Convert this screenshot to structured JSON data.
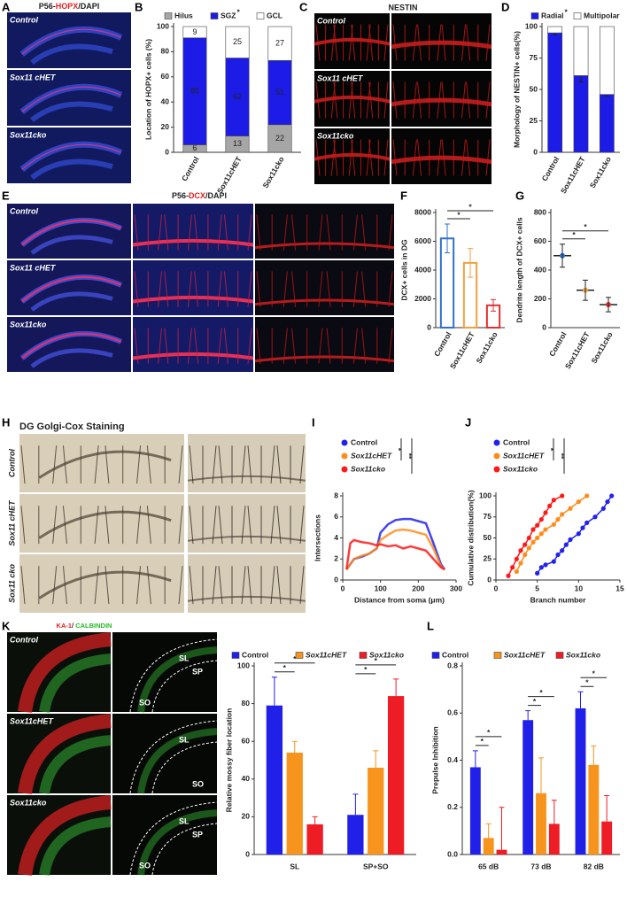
{
  "panel_letters": [
    "A",
    "B",
    "C",
    "D",
    "E",
    "F",
    "G",
    "H",
    "I",
    "J",
    "K",
    "L"
  ],
  "panels": {
    "A": {
      "title": [
        "P56-",
        "HOPX",
        "/DAPI"
      ],
      "rows": [
        "Control",
        "Sox11 cHET",
        "Sox11cko"
      ]
    },
    "C": {
      "title": "NESTIN",
      "rows": [
        "Control",
        "Sox11 cHET",
        "Sox11cko"
      ]
    },
    "E": {
      "title": [
        "P56-",
        "DCX",
        "/DAPI"
      ],
      "rows": [
        "Control",
        "Sox11 cHET",
        "Sox11cko"
      ]
    },
    "H": {
      "title": "DG Golgi-Cox Staining",
      "rows": [
        "Control",
        "Sox11 cHET",
        "Sox11 cko"
      ]
    },
    "K": {
      "title": [
        "KA-1",
        "/ ",
        "CALBINDIN"
      ],
      "rows": [
        "Control",
        "Sox11cHET",
        "Sox11cko"
      ],
      "regions": [
        [
          "SL",
          "SP",
          "SO"
        ],
        [
          "SL",
          "SO"
        ],
        [
          "SL",
          "SP",
          "SO"
        ]
      ]
    }
  },
  "chart_data": [
    {
      "type": "bar",
      "stacked": true,
      "show_values": true,
      "ylabel": "Location of HOPX+ cells (%)",
      "categories": [
        "Control",
        "Sox11cHET",
        "Sox11cko"
      ],
      "series": [
        {
          "name": "Hilus",
          "color": "#a6a6a6",
          "values": [
            6,
            13,
            22
          ]
        },
        {
          "name": "SGZ",
          "color": "#1c1ce6",
          "mark": "*",
          "values": [
            85,
            62,
            51
          ]
        },
        {
          "name": "GCL",
          "color": "#ffffff",
          "values": [
            9,
            25,
            27
          ]
        }
      ],
      "ylim": [
        0,
        100
      ],
      "yticks": [
        0,
        20,
        40,
        60,
        80,
        100
      ]
    },
    {
      "type": "bar",
      "stacked": true,
      "ylabel": "Morphology of  NESTIN+ cells(%)",
      "categories": [
        "Control",
        "Sox11cHET",
        "Sox11cko"
      ],
      "series": [
        {
          "name": "Radial",
          "color": "#1c1ce6",
          "mark": "*",
          "values": [
            95,
            61,
            46
          ],
          "errors": [
            1.5,
            5,
            1.5
          ]
        },
        {
          "name": "Multipolar",
          "color": "#ffffff",
          "values": [
            5,
            39,
            54
          ]
        }
      ],
      "ylim": [
        0,
        100
      ],
      "yticks": [
        0,
        25,
        50,
        75,
        100
      ]
    },
    {
      "type": "bar",
      "ylabel": "DCX+ cells in DG",
      "categories": [
        "Control",
        "Sox11cHET",
        "Sox11cko"
      ],
      "values": [
        6200,
        4500,
        1550
      ],
      "errors": [
        1000,
        1000,
        400
      ],
      "colors": [
        "#2e6fcf",
        "#f0a040",
        "#e03030"
      ],
      "ylim": [
        0,
        8000
      ],
      "yticks": [
        0,
        2000,
        4000,
        6000,
        8000
      ],
      "significance": [
        {
          "between": [
            "Control",
            "Sox11cHET"
          ],
          "label": "*"
        },
        {
          "between": [
            "Control",
            "Sox11cko"
          ],
          "label": "*"
        }
      ]
    },
    {
      "type": "dot",
      "ylabel": "Dendrite length of DCX+ cells",
      "categories": [
        "Control",
        "Sox11cHET",
        "Sox11cko"
      ],
      "values": [
        500,
        260,
        160
      ],
      "errors": [
        80,
        70,
        50
      ],
      "colors": [
        "#2e6fcf",
        "#f0a040",
        "#e03030"
      ],
      "ylim": [
        0,
        800
      ],
      "yticks": [
        0,
        200,
        400,
        600,
        800
      ],
      "significance": [
        {
          "between": [
            "Control",
            "Sox11cHET"
          ],
          "label": "*"
        },
        {
          "between": [
            "Control",
            "Sox11cko"
          ],
          "label": "*"
        }
      ]
    },
    {
      "type": "line",
      "ylabel": "Intersections",
      "xlabel": "Distance from soma (μm)",
      "x": [
        10,
        20,
        30,
        50,
        70,
        90,
        100,
        120,
        140,
        160,
        180,
        200,
        220,
        240,
        260,
        270
      ],
      "series": [
        {
          "name": "Control",
          "color": "#2222ee",
          "values": [
            1,
            1.5,
            2,
            2.2,
            2.5,
            3,
            4.5,
            5.3,
            5.7,
            5.8,
            5.8,
            5.6,
            5.4,
            3.5,
            1.5,
            1
          ]
        },
        {
          "name": "Sox11cHET",
          "color": "#ff8c1a",
          "values": [
            1,
            1.5,
            2,
            2.3,
            2.5,
            3,
            3.8,
            4.3,
            4.7,
            4.8,
            4.7,
            4.5,
            4.3,
            3,
            1.3,
            1
          ]
        },
        {
          "name": "Sox11cko",
          "color": "#ff1a1a",
          "values": [
            1,
            3.5,
            3.8,
            3.6,
            3.5,
            3.3,
            3.4,
            3.2,
            3.3,
            3,
            3.2,
            3,
            2.8,
            2,
            1.2,
            1
          ]
        }
      ],
      "xlim": [
        0,
        300
      ],
      "xticks": [
        0,
        100,
        200,
        300
      ],
      "ylim": [
        0,
        8
      ],
      "yticks": [
        0,
        2,
        4,
        6,
        8
      ],
      "legend_significance": [
        {
          "between": [
            "Control",
            "Sox11cHET"
          ],
          "label": "*"
        },
        {
          "between": [
            "Control",
            "Sox11cko"
          ],
          "label": "**"
        }
      ]
    },
    {
      "type": "line",
      "markers": true,
      "ylabel": "Cumulative distribution(%)",
      "xlabel": "Branch number",
      "series": [
        {
          "name": "Control",
          "color": "#2222ee",
          "x": [
            5,
            5.5,
            6,
            7,
            7.5,
            8,
            8.5,
            9,
            10,
            10.5,
            11,
            12,
            13,
            13.5,
            14
          ],
          "values": [
            8,
            15,
            18,
            22,
            30,
            35,
            42,
            48,
            55,
            62,
            68,
            75,
            85,
            93,
            100
          ]
        },
        {
          "name": "Sox11cHET",
          "color": "#ff8c1a",
          "x": [
            2.5,
            3,
            3.5,
            4,
            4.5,
            5,
            5.5,
            6,
            7,
            7.5,
            8,
            9,
            10,
            11
          ],
          "values": [
            10,
            20,
            30,
            38,
            45,
            50,
            55,
            60,
            66,
            72,
            78,
            85,
            93,
            100
          ]
        },
        {
          "name": "Sox11cko",
          "color": "#ff1a1a",
          "x": [
            1.5,
            2,
            2.5,
            3,
            3.5,
            4,
            4.5,
            5,
            5.5,
            6,
            6.5,
            7,
            8
          ],
          "values": [
            5,
            15,
            25,
            35,
            42,
            50,
            60,
            65,
            72,
            80,
            88,
            95,
            100
          ]
        }
      ],
      "xlim": [
        0,
        15
      ],
      "xticks": [
        0,
        5,
        10,
        15
      ],
      "ylim": [
        0,
        100
      ],
      "yticks": [
        0,
        25,
        50,
        75,
        100
      ],
      "legend_significance": [
        {
          "between": [
            "Control",
            "Sox11cHET"
          ],
          "label": "*"
        },
        {
          "between": [
            "Control",
            "Sox11cko"
          ],
          "label": "**"
        }
      ]
    },
    {
      "type": "bar",
      "ylabel": "Relative mossy fiber location",
      "categories": [
        "SL",
        "SP+SO"
      ],
      "series": [
        {
          "name": "Control",
          "color": "#2020e8",
          "values": [
            79,
            21
          ],
          "errors": [
            15,
            11
          ]
        },
        {
          "name": "Sox11cHET",
          "color": "#f7941d",
          "values": [
            54,
            46
          ],
          "errors": [
            6,
            9
          ]
        },
        {
          "name": "Sox11cko",
          "color": "#ee1c25",
          "values": [
            16,
            84
          ],
          "errors": [
            4,
            9
          ]
        }
      ],
      "ylim": [
        0,
        100
      ],
      "yticks": [
        0,
        20,
        40,
        60,
        80,
        100
      ],
      "significance": [
        {
          "category": "SL",
          "between": [
            "Control",
            "Sox11cHET"
          ],
          "label": "*"
        },
        {
          "category": "SL",
          "between": [
            "Control",
            "Sox11cko"
          ],
          "label": "*"
        },
        {
          "category": "SP+SO",
          "between": [
            "Control",
            "Sox11cHET"
          ],
          "label": "*"
        },
        {
          "category": "SP+SO",
          "between": [
            "Control",
            "Sox11cko"
          ],
          "label": "*"
        }
      ]
    },
    {
      "type": "bar",
      "ylabel": "Prepulse Inhibition",
      "categories": [
        "65 dB",
        "73 dB",
        "82 dB"
      ],
      "series": [
        {
          "name": "Control",
          "color": "#2020e8",
          "values": [
            0.37,
            0.57,
            0.62
          ],
          "errors": [
            0.07,
            0.04,
            0.07
          ]
        },
        {
          "name": "Sox11cHET",
          "color": "#f7941d",
          "values": [
            0.07,
            0.26,
            0.38
          ],
          "errors": [
            0.06,
            0.15,
            0.08
          ]
        },
        {
          "name": "Sox11cko",
          "color": "#ee1c25",
          "values": [
            0.02,
            0.13,
            0.14
          ],
          "errors": [
            0.18,
            0.1,
            0.11
          ]
        }
      ],
      "ylim": [
        0,
        0.8
      ],
      "yticks": [
        {
          "value": 0,
          "label": "0.0"
        },
        0.2,
        0.4,
        0.6,
        0.8
      ],
      "significance": [
        {
          "category": "65 dB",
          "between": [
            "Control",
            "Sox11cHET"
          ],
          "label": "*"
        },
        {
          "category": "65 dB",
          "between": [
            "Control",
            "Sox11cko"
          ],
          "label": "*"
        },
        {
          "category": "73 dB",
          "between": [
            "Control",
            "Sox11cHET"
          ],
          "label": "*"
        },
        {
          "category": "73 dB",
          "between": [
            "Control",
            "Sox11cko"
          ],
          "label": "*"
        },
        {
          "category": "82 dB",
          "between": [
            "Control",
            "Sox11cHET"
          ],
          "label": "*"
        },
        {
          "category": "82 dB",
          "between": [
            "Control",
            "Sox11cko"
          ],
          "label": "*"
        }
      ]
    }
  ]
}
